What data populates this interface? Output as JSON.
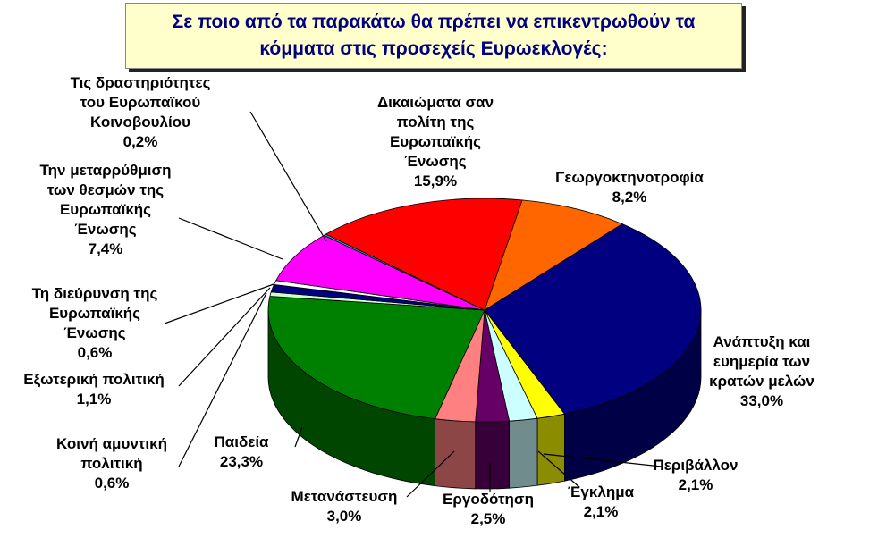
{
  "chart_data": {
    "type": "pie",
    "title": "Σε ποιο από τα παρακάτω θα πρέπει να επικεντρωθούν τα κόμματα στις προσεχείς Ευρωεκλογές:",
    "slices": [
      {
        "name": "Γεωργοκτηνοτροφία",
        "value": 8.2,
        "label": "8,2%",
        "color": "#ff6600"
      },
      {
        "name": "Ανάπτυξη και ευημερία των κρατών μελών",
        "value": 33.0,
        "label": "33,0%",
        "color": "#000080"
      },
      {
        "name": "Περιβάλλον",
        "value": 2.1,
        "label": "2,1%",
        "color": "#ffff00"
      },
      {
        "name": "Έγκλημα",
        "value": 2.1,
        "label": "2,1%",
        "color": "#ccffff"
      },
      {
        "name": "Εργοδότηση",
        "value": 2.5,
        "label": "2,5%",
        "color": "#660066"
      },
      {
        "name": "Μετανάστευση",
        "value": 3.0,
        "label": "3,0%",
        "color": "#ff8080"
      },
      {
        "name": "Παιδεία",
        "value": 23.3,
        "label": "23,3%",
        "color": "#008000"
      },
      {
        "name": "Κοινή αμυντική πολιτική",
        "value": 0.6,
        "label": "0,6%",
        "color": "#ccffcc"
      },
      {
        "name": "Εξωτερική πολιτική",
        "value": 1.1,
        "label": "1,1%",
        "color": "#000080"
      },
      {
        "name": "Τη διεύρυνση της Ευρωπαϊκής Ένωσης",
        "value": 0.6,
        "label": "0,6%",
        "color": "#ffffff"
      },
      {
        "name": "Την μεταρρύθμιση των θεσμών της Ευρωπαϊκής Ένωσης",
        "value": 7.4,
        "label": "7,4%",
        "color": "#ff00ff"
      },
      {
        "name": "Τις δραστηριότητες του Ευρωπαϊκού Κοινοβουλίου",
        "value": 0.2,
        "label": "0,2%",
        "color": "#00ccff"
      },
      {
        "name": "Δικαιώματα σαν πολίτη της Ευρωπαϊκής Ένωσης",
        "value": 15.9,
        "label": "15,9%",
        "color": "#ff0000"
      }
    ]
  },
  "labels": [
    {
      "lines": [
        "Γεωργοκτηνοτροφία"
      ],
      "pct": "8,2%"
    },
    {
      "lines": [
        "Ανάπτυξη και",
        "ευημερία των",
        "κρατών μελών"
      ],
      "pct": "33,0%"
    },
    {
      "lines": [
        "Περιβάλλον"
      ],
      "pct": "2,1%"
    },
    {
      "lines": [
        "Έγκλημα"
      ],
      "pct": "2,1%"
    },
    {
      "lines": [
        "Εργοδότηση"
      ],
      "pct": "2,5%"
    },
    {
      "lines": [
        "Μετανάστευση"
      ],
      "pct": "3,0%"
    },
    {
      "lines": [
        "Παιδεία"
      ],
      "pct": "23,3%"
    },
    {
      "lines": [
        "Κοινή αμυντική",
        "πολιτική"
      ],
      "pct": "0,6%"
    },
    {
      "lines": [
        "Εξωτερική πολιτική"
      ],
      "pct": "1,1%"
    },
    {
      "lines": [
        "Τη διεύρυνση της",
        "Ευρωπαϊκής",
        "Ένωσης"
      ],
      "pct": "0,6%"
    },
    {
      "lines": [
        "Την μεταρρύθμιση",
        "των θεσμών της",
        "Ευρωπαϊκής",
        "Ένωσης"
      ],
      "pct": "7,4%"
    },
    {
      "lines": [
        "Τις δραστηριότητες",
        "του Ευρωπαϊκού",
        "Κοινοβουλίου"
      ],
      "pct": "0,2%"
    },
    {
      "lines": [
        "Δικαιώματα σαν",
        "πολίτη της",
        "Ευρωπαϊκής",
        "Ένωσης"
      ],
      "pct": "15,9%"
    }
  ]
}
